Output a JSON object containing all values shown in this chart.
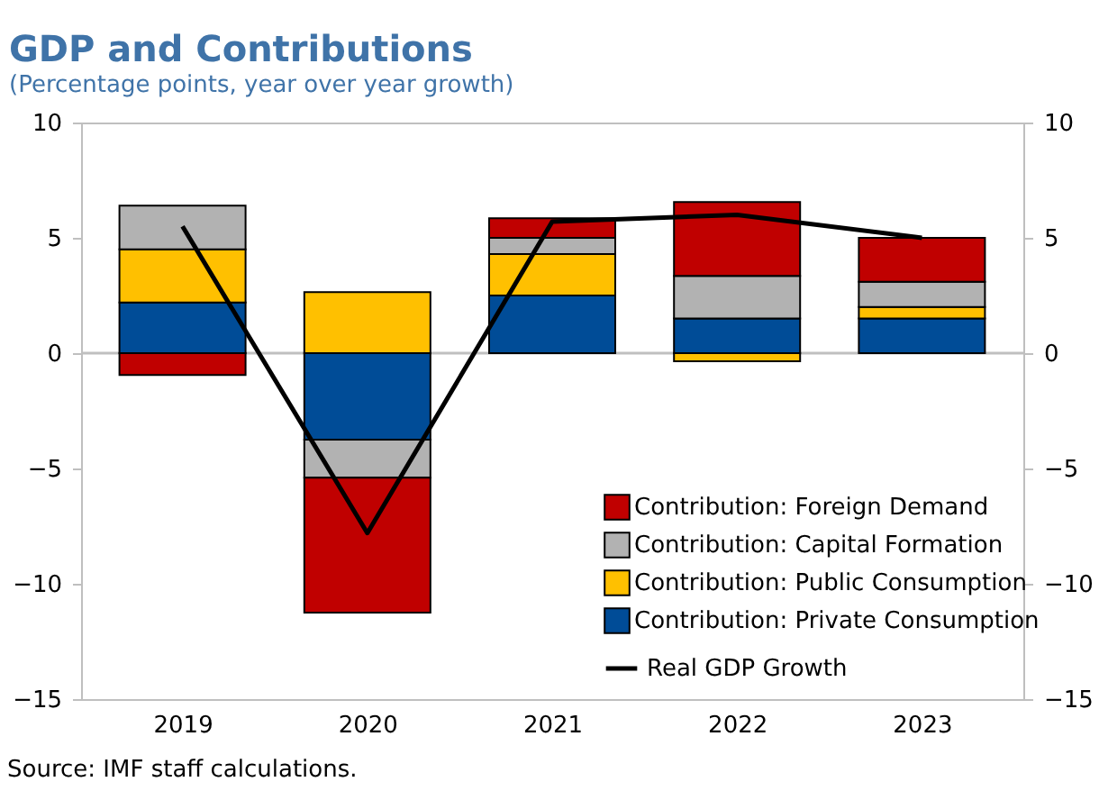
{
  "chart_data": {
    "type": "bar",
    "title": "GDP and Contributions",
    "subtitle": "(Percentage points, year over year growth)",
    "categories": [
      "2019",
      "2020",
      "2021",
      "2022",
      "2023"
    ],
    "stacked": true,
    "series": [
      {
        "name": "Contribution: Private Consumption",
        "color": "#004c97",
        "values": [
          2.2,
          -3.75,
          2.5,
          1.5,
          1.5
        ]
      },
      {
        "name": "Contribution: Public Consumption",
        "color": "#ffc000",
        "values": [
          2.3,
          2.65,
          1.8,
          -0.35,
          0.5
        ]
      },
      {
        "name": "Contribution: Capital Formation",
        "color": "#b2b2b2",
        "values": [
          1.9,
          -1.65,
          0.7,
          1.85,
          1.1
        ]
      },
      {
        "name": "Contribution: Foreign Demand",
        "color": "#c00000",
        "values": [
          -0.95,
          -5.85,
          0.85,
          3.2,
          1.9
        ]
      },
      {
        "name": "Real GDP Growth",
        "type": "line",
        "color": "#000000",
        "values": [
          5.5,
          -7.8,
          5.7,
          6.0,
          5.0
        ]
      }
    ],
    "ylim": [
      -15,
      10
    ],
    "yticks": [
      -15,
      -10,
      -5,
      0,
      5,
      10
    ],
    "y2lim": [
      -15,
      10
    ],
    "y2ticks": [
      -15,
      -10,
      -5,
      0,
      5,
      10
    ],
    "ref_lines": [
      {
        "axis": "y",
        "value": 0,
        "color": "#bfbfbf"
      }
    ],
    "grid": false,
    "legend": "bottom right",
    "marker": "none",
    "line_style": "solid",
    "annotations": [
      "Source: IMF staff calculations."
    ]
  }
}
